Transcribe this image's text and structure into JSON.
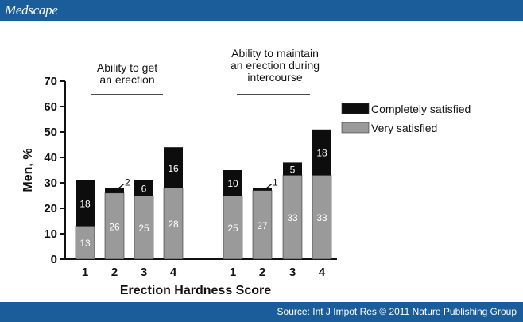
{
  "header": {
    "brand": "Medscape"
  },
  "footer": {
    "source": "Source: Int J Impot Res © 2011 Nature Publishing Group"
  },
  "colors": {
    "brand_bar": "#1b5c9b",
    "completely": "#0d0d0d",
    "very": "#9a9a9a"
  },
  "chart_data": {
    "type": "bar",
    "stacked": true,
    "xlabel": "Erection Hardness Score",
    "ylabel": "Men, %",
    "ylim": [
      0,
      70
    ],
    "yticks": [
      0,
      10,
      20,
      30,
      40,
      50,
      60,
      70
    ],
    "legend_position": "right",
    "groups": [
      {
        "title_lines": [
          "Ability to get",
          "an erection"
        ],
        "categories": [
          "1",
          "2",
          "3",
          "4"
        ],
        "series": [
          {
            "name": "Very satisfied",
            "values": [
              13,
              26,
              25,
              28
            ],
            "labels": [
              "13",
              "26",
              "25",
              "28"
            ]
          },
          {
            "name": "Completely satisfied",
            "values": [
              18,
              2,
              6,
              16
            ],
            "labels": [
              "18",
              "2",
              "6",
              "16"
            ]
          }
        ]
      },
      {
        "title_lines": [
          "Ability to maintain",
          "an erection during",
          "intercourse"
        ],
        "categories": [
          "1",
          "2",
          "3",
          "4"
        ],
        "series": [
          {
            "name": "Very satisfied",
            "values": [
              25,
              27,
              33,
              33
            ],
            "labels": [
              "25",
              "27",
              "33",
              "33"
            ]
          },
          {
            "name": "Completely satisfied",
            "values": [
              10,
              1,
              5,
              18
            ],
            "labels": [
              "10",
              "1",
              "5",
              "18"
            ]
          }
        ]
      }
    ],
    "legend": [
      "Completely satisfied",
      "Very satisfied"
    ]
  }
}
